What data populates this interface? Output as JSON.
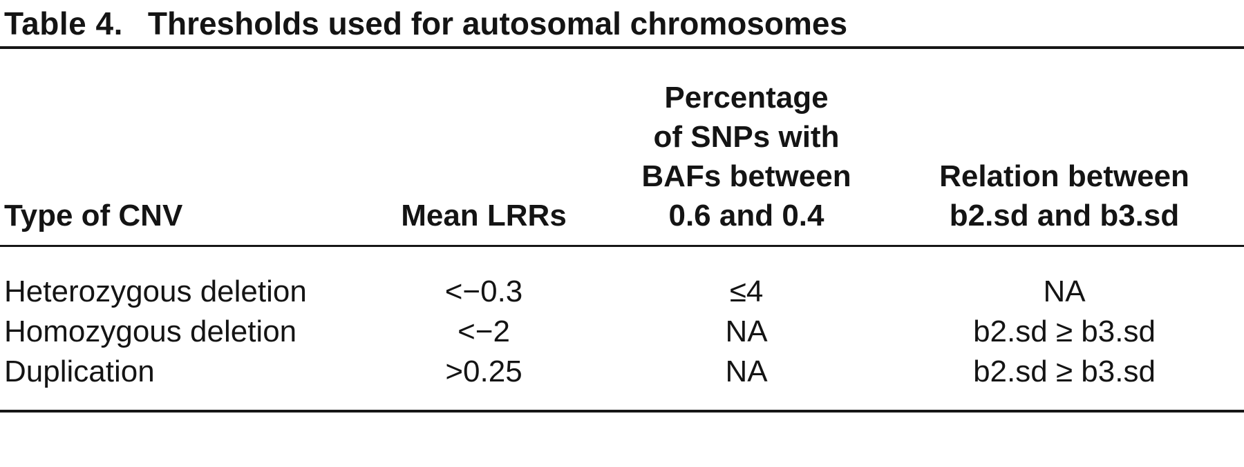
{
  "table": {
    "label": "Table 4.",
    "caption": "Thresholds used for autosomal chromosomes",
    "columns": [
      {
        "header_lines": [
          "Type of CNV"
        ],
        "align": "left"
      },
      {
        "header_lines": [
          "Mean LRRs"
        ],
        "align": "center"
      },
      {
        "header_lines": [
          "Percentage",
          "of SNPs with",
          "BAFs between",
          "0.6 and 0.4"
        ],
        "align": "center"
      },
      {
        "header_lines": [
          "Relation between",
          "b2.sd and b3.sd"
        ],
        "align": "center"
      }
    ],
    "rows": [
      [
        "Heterozygous deletion",
        "<−0.3",
        "≤4",
        "NA"
      ],
      [
        "Homozygous deletion",
        "<−2",
        "NA",
        "b2.sd ≥ b3.sd"
      ],
      [
        "Duplication",
        ">0.25",
        "NA",
        "b2.sd ≥ b3.sd"
      ]
    ],
    "colors": {
      "text": "#141414",
      "rule": "#161616",
      "background": "#ffffff"
    }
  }
}
